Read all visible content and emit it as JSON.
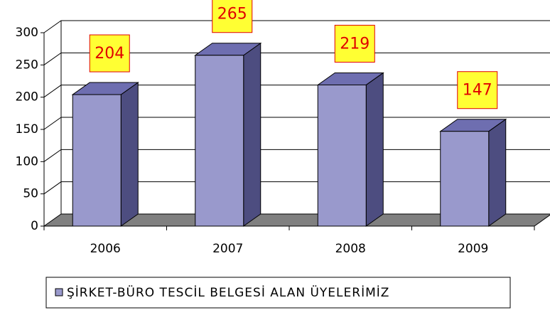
{
  "chart_data": {
    "type": "bar3d",
    "categories": [
      "2006",
      "2007",
      "2008",
      "2009"
    ],
    "series": [
      {
        "name": "ŞİRKET-BÜRO TESCİL BELGESİ ALAN ÜYELERİMİZ",
        "color": "#9999cc",
        "values": [
          204,
          265,
          219,
          147
        ]
      }
    ],
    "ylim": [
      0,
      300
    ],
    "yticks": [
      0,
      50,
      100,
      150,
      200,
      250,
      300
    ],
    "grid": true,
    "legend": "bottom"
  }
}
